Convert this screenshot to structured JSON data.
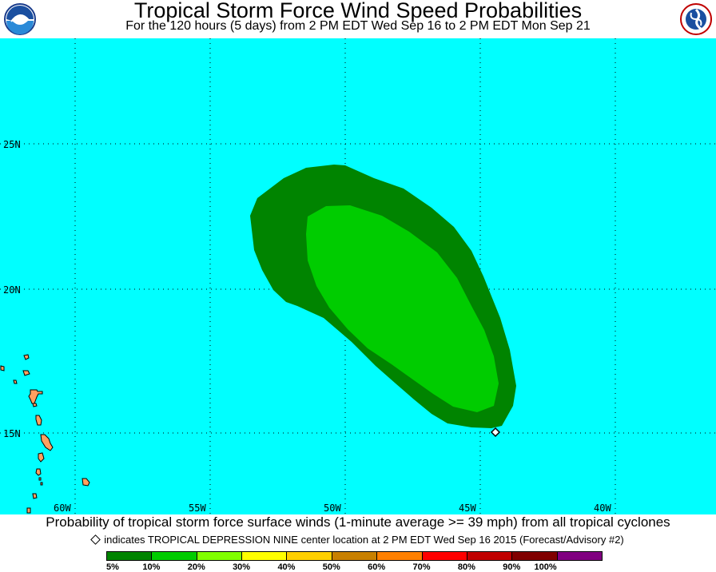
{
  "header": {
    "title": "Tropical Storm Force Wind Speed Probabilities",
    "subtitle": "For the 120 hours (5 days) from 2 PM EDT Wed Sep 16 to 2 PM EDT Mon Sep 21",
    "left_logo": "noaa-logo",
    "right_logo": "national-weather-service-logo"
  },
  "map": {
    "ocean_color": "#00ffff",
    "land_color": "#ffa060",
    "lat_labels": [
      "25N",
      "20N",
      "15N"
    ],
    "lon_labels": [
      "60W",
      "55W",
      "50W",
      "45W",
      "40W"
    ],
    "probability_areas": [
      {
        "range": "5% - 10%",
        "color": "#008400"
      },
      {
        "range": "10% - 20%",
        "color": "#00cc00"
      }
    ],
    "storm_center": {
      "lat": 14.8,
      "lon": -44.4
    }
  },
  "footer": {
    "caption": "Probability of tropical storm force surface winds (1-minute average >= 39 mph) from all tropical cyclones",
    "indicator_text": "indicates TROPICAL DEPRESSION NINE center location at 2 PM EDT Wed Sep 16 2015 (Forecast/Advisory #2)"
  },
  "legend": {
    "labels": [
      "5%",
      "10%",
      "20%",
      "30%",
      "40%",
      "50%",
      "60%",
      "70%",
      "80%",
      "90%",
      "100%"
    ],
    "colors": [
      "#008400",
      "#00cc00",
      "#80ff00",
      "#ffff00",
      "#ffd000",
      "#c88000",
      "#ff8000",
      "#ff0000",
      "#c00000",
      "#800000",
      "#800080"
    ]
  }
}
